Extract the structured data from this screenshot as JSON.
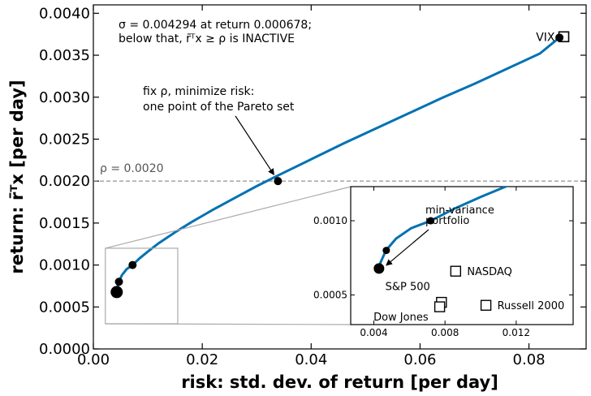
{
  "chart_data": {
    "type": "line",
    "xlabel": "risk: std. dev. of return [per day]",
    "ylabel": "return: r̄ᵀx [per day]",
    "xlim": [
      0.0,
      0.0905
    ],
    "ylim": [
      0.0,
      0.0041
    ],
    "x_ticks": [
      "0.00",
      "0.02",
      "0.04",
      "0.06",
      "0.08"
    ],
    "y_ticks": [
      "0.0000",
      "0.0005",
      "0.0010",
      "0.0015",
      "0.0020",
      "0.0025",
      "0.0030",
      "0.0035",
      "0.0040"
    ],
    "grid": false,
    "frontier": {
      "color": "#0072b2",
      "x": [
        0.00429,
        0.00438,
        0.00468,
        0.00525,
        0.0061,
        0.0072,
        0.0085,
        0.01,
        0.012,
        0.015,
        0.018,
        0.022,
        0.026,
        0.03,
        0.034,
        0.04,
        0.046,
        0.052,
        0.058,
        0.064,
        0.07,
        0.076,
        0.082,
        0.0856
      ],
      "y": [
        0.000678,
        0.00072,
        0.0008,
        0.00088,
        0.00095,
        0.001,
        0.00108,
        0.00116,
        0.00126,
        0.00139,
        0.00151,
        0.00166,
        0.0018,
        0.00194,
        0.00207,
        0.00226,
        0.00245,
        0.00263,
        0.00281,
        0.00299,
        0.00316,
        0.00334,
        0.00352,
        0.00371
      ]
    },
    "pareto_points": [
      {
        "x": 0.00429,
        "y": 0.000678,
        "size": "large"
      },
      {
        "x": 0.0047,
        "y": 0.0008,
        "size": "small"
      },
      {
        "x": 0.0072,
        "y": 0.001,
        "size": "small"
      },
      {
        "x": 0.0339,
        "y": 0.002,
        "size": "small"
      },
      {
        "x": 0.0856,
        "y": 0.00371,
        "size": "small"
      }
    ],
    "assets": [
      {
        "name": "VIX",
        "x": 0.0864,
        "y": 0.00372
      },
      {
        "name": "NASDAQ",
        "x": 0.0086,
        "y": 0.00066
      },
      {
        "name": "Russell 2000",
        "x": 0.0103,
        "y": 0.00043
      },
      {
        "name": "S&P 500",
        "x": 0.0078,
        "y": 0.00045
      },
      {
        "name": "Dow Jones",
        "x": 0.0077,
        "y": 0.00042
      }
    ],
    "rho_line": {
      "y": 0.002,
      "label": "ρ = 0.0020"
    },
    "zoom_box": {
      "xlim": [
        0.0022,
        0.0155
      ],
      "ylim": [
        0.0003,
        0.0012
      ]
    },
    "inset": {
      "xlim": [
        0.0027,
        0.0152
      ],
      "ylim": [
        0.0003,
        0.00123
      ],
      "x_ticks": [
        "0.004",
        "0.008",
        "0.012"
      ],
      "y_ticks": [
        "0.0005",
        "0.0010"
      ]
    },
    "annotations": {
      "sigma_line1": "σ = 0.004294 at return 0.000678;",
      "sigma_line2": "below that, r̄ᵀx ≥ ρ is INACTIVE",
      "pareto_line1": "fix ρ, minimize risk:",
      "pareto_line2": "one point of the Pareto set",
      "minvar_line1": "min-variance",
      "minvar_line2": "portfolio"
    }
  }
}
